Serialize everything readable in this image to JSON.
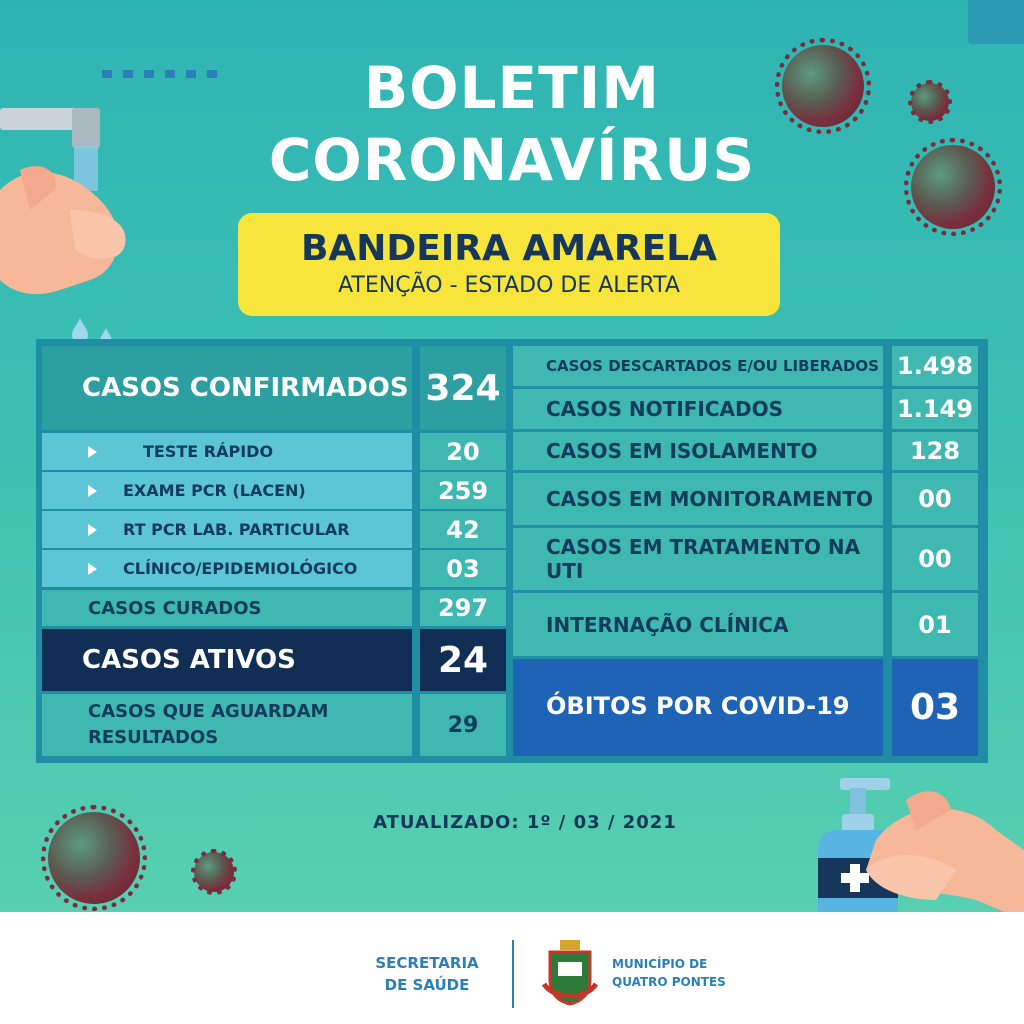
{
  "header": {
    "title_line1": "BOLETIM",
    "title_line2": "CORONAVÍRUS"
  },
  "banner": {
    "flag": "BANDEIRA AMARELA",
    "status": "ATENÇÃO - ESTADO DE ALERTA",
    "color": "#f7e53b"
  },
  "left_table": {
    "confirmados": {
      "label": "CASOS CONFIRMADOS",
      "value": "324"
    },
    "breakdown": [
      {
        "label": "TESTE RÁPIDO",
        "value": "20"
      },
      {
        "label": "EXAME PCR (LACEN)",
        "value": "259"
      },
      {
        "label": "RT PCR LAB. PARTICULAR",
        "value": "42"
      },
      {
        "label": "CLÍNICO/EPIDEMIOLÓGICO",
        "value": "03"
      }
    ],
    "curados": {
      "label": "CASOS CURADOS",
      "value": "297"
    },
    "ativos": {
      "label": "CASOS ATIVOS",
      "value": "24"
    },
    "aguardam": {
      "label_line1": "CASOS QUE AGUARDAM",
      "label_line2": "RESULTADOS",
      "value": "29"
    }
  },
  "right_table": {
    "rows": [
      {
        "label": "CASOS DESCARTADOS E/OU LIBERADOS",
        "value": "1.498"
      },
      {
        "label": "CASOS NOTIFICADOS",
        "value": "1.149"
      },
      {
        "label": "CASOS EM ISOLAMENTO",
        "value": "128"
      },
      {
        "label": "CASOS EM MONITORAMENTO",
        "value": "00"
      },
      {
        "label": "CASOS EM TRATAMENTO NA UTI",
        "value": "00"
      },
      {
        "label": "INTERNAÇÃO CLÍNICA",
        "value": "01"
      }
    ],
    "obitos": {
      "label": "ÓBITOS POR COVID-19",
      "value": "03"
    }
  },
  "updated": {
    "label": "ATUALIZADO:",
    "date": "1º / 03 / 2021"
  },
  "footer": {
    "secretaria_line1": "SECRETARIA",
    "secretaria_line2": "DE SAÚDE",
    "municipio_line1": "MUNICÍPIO DE",
    "municipio_line2": "QUATRO PONTES"
  },
  "icons": [
    "virus-icon",
    "faucet-icon",
    "hands-icon",
    "sanitizer-icon",
    "water-drop-icon",
    "crest-icon"
  ]
}
